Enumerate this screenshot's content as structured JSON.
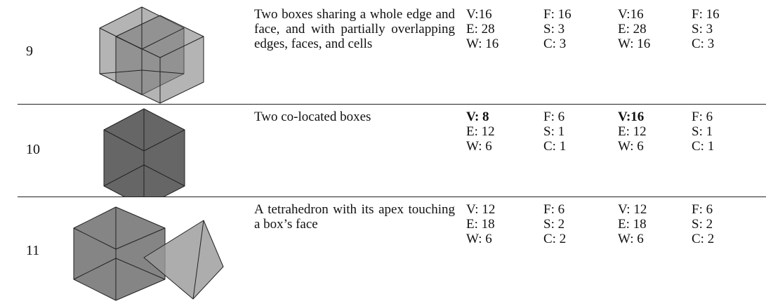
{
  "table": {
    "rows": [
      {
        "number": "9",
        "description": "Two boxes sharing a whole edge and face, and with partially overlapping edges, faces, and cells",
        "cells": [
          [
            "V:16",
            "E: 28",
            "W: 16"
          ],
          [
            "F: 16",
            "S: 3",
            "C: 3"
          ],
          [
            "V:16",
            "E: 28",
            "W: 16"
          ],
          [
            "F: 16",
            "S: 3",
            "C: 3"
          ]
        ],
        "bold_first_line": false
      },
      {
        "number": "10",
        "description": "Two co-located boxes",
        "cells": [
          [
            "V: 8",
            "E: 12",
            "W: 6"
          ],
          [
            "F: 6",
            "S: 1",
            "C: 1"
          ],
          [
            "V:16",
            "E: 12",
            "W: 6"
          ],
          [
            "F: 6",
            "S: 1",
            "C: 1"
          ]
        ],
        "bold_first_line": true
      },
      {
        "number": "11",
        "description": "A tetrahedron with its apex touching a box’s face",
        "cells": [
          [
            "V: 12",
            "E: 18",
            "W: 6"
          ],
          [
            "F: 6",
            "S: 2",
            "C: 2"
          ],
          [
            "V: 12",
            "E: 18",
            "W: 6"
          ],
          [
            "F: 6",
            "S: 2",
            "C: 2"
          ]
        ],
        "bold_first_line": false
      }
    ]
  }
}
